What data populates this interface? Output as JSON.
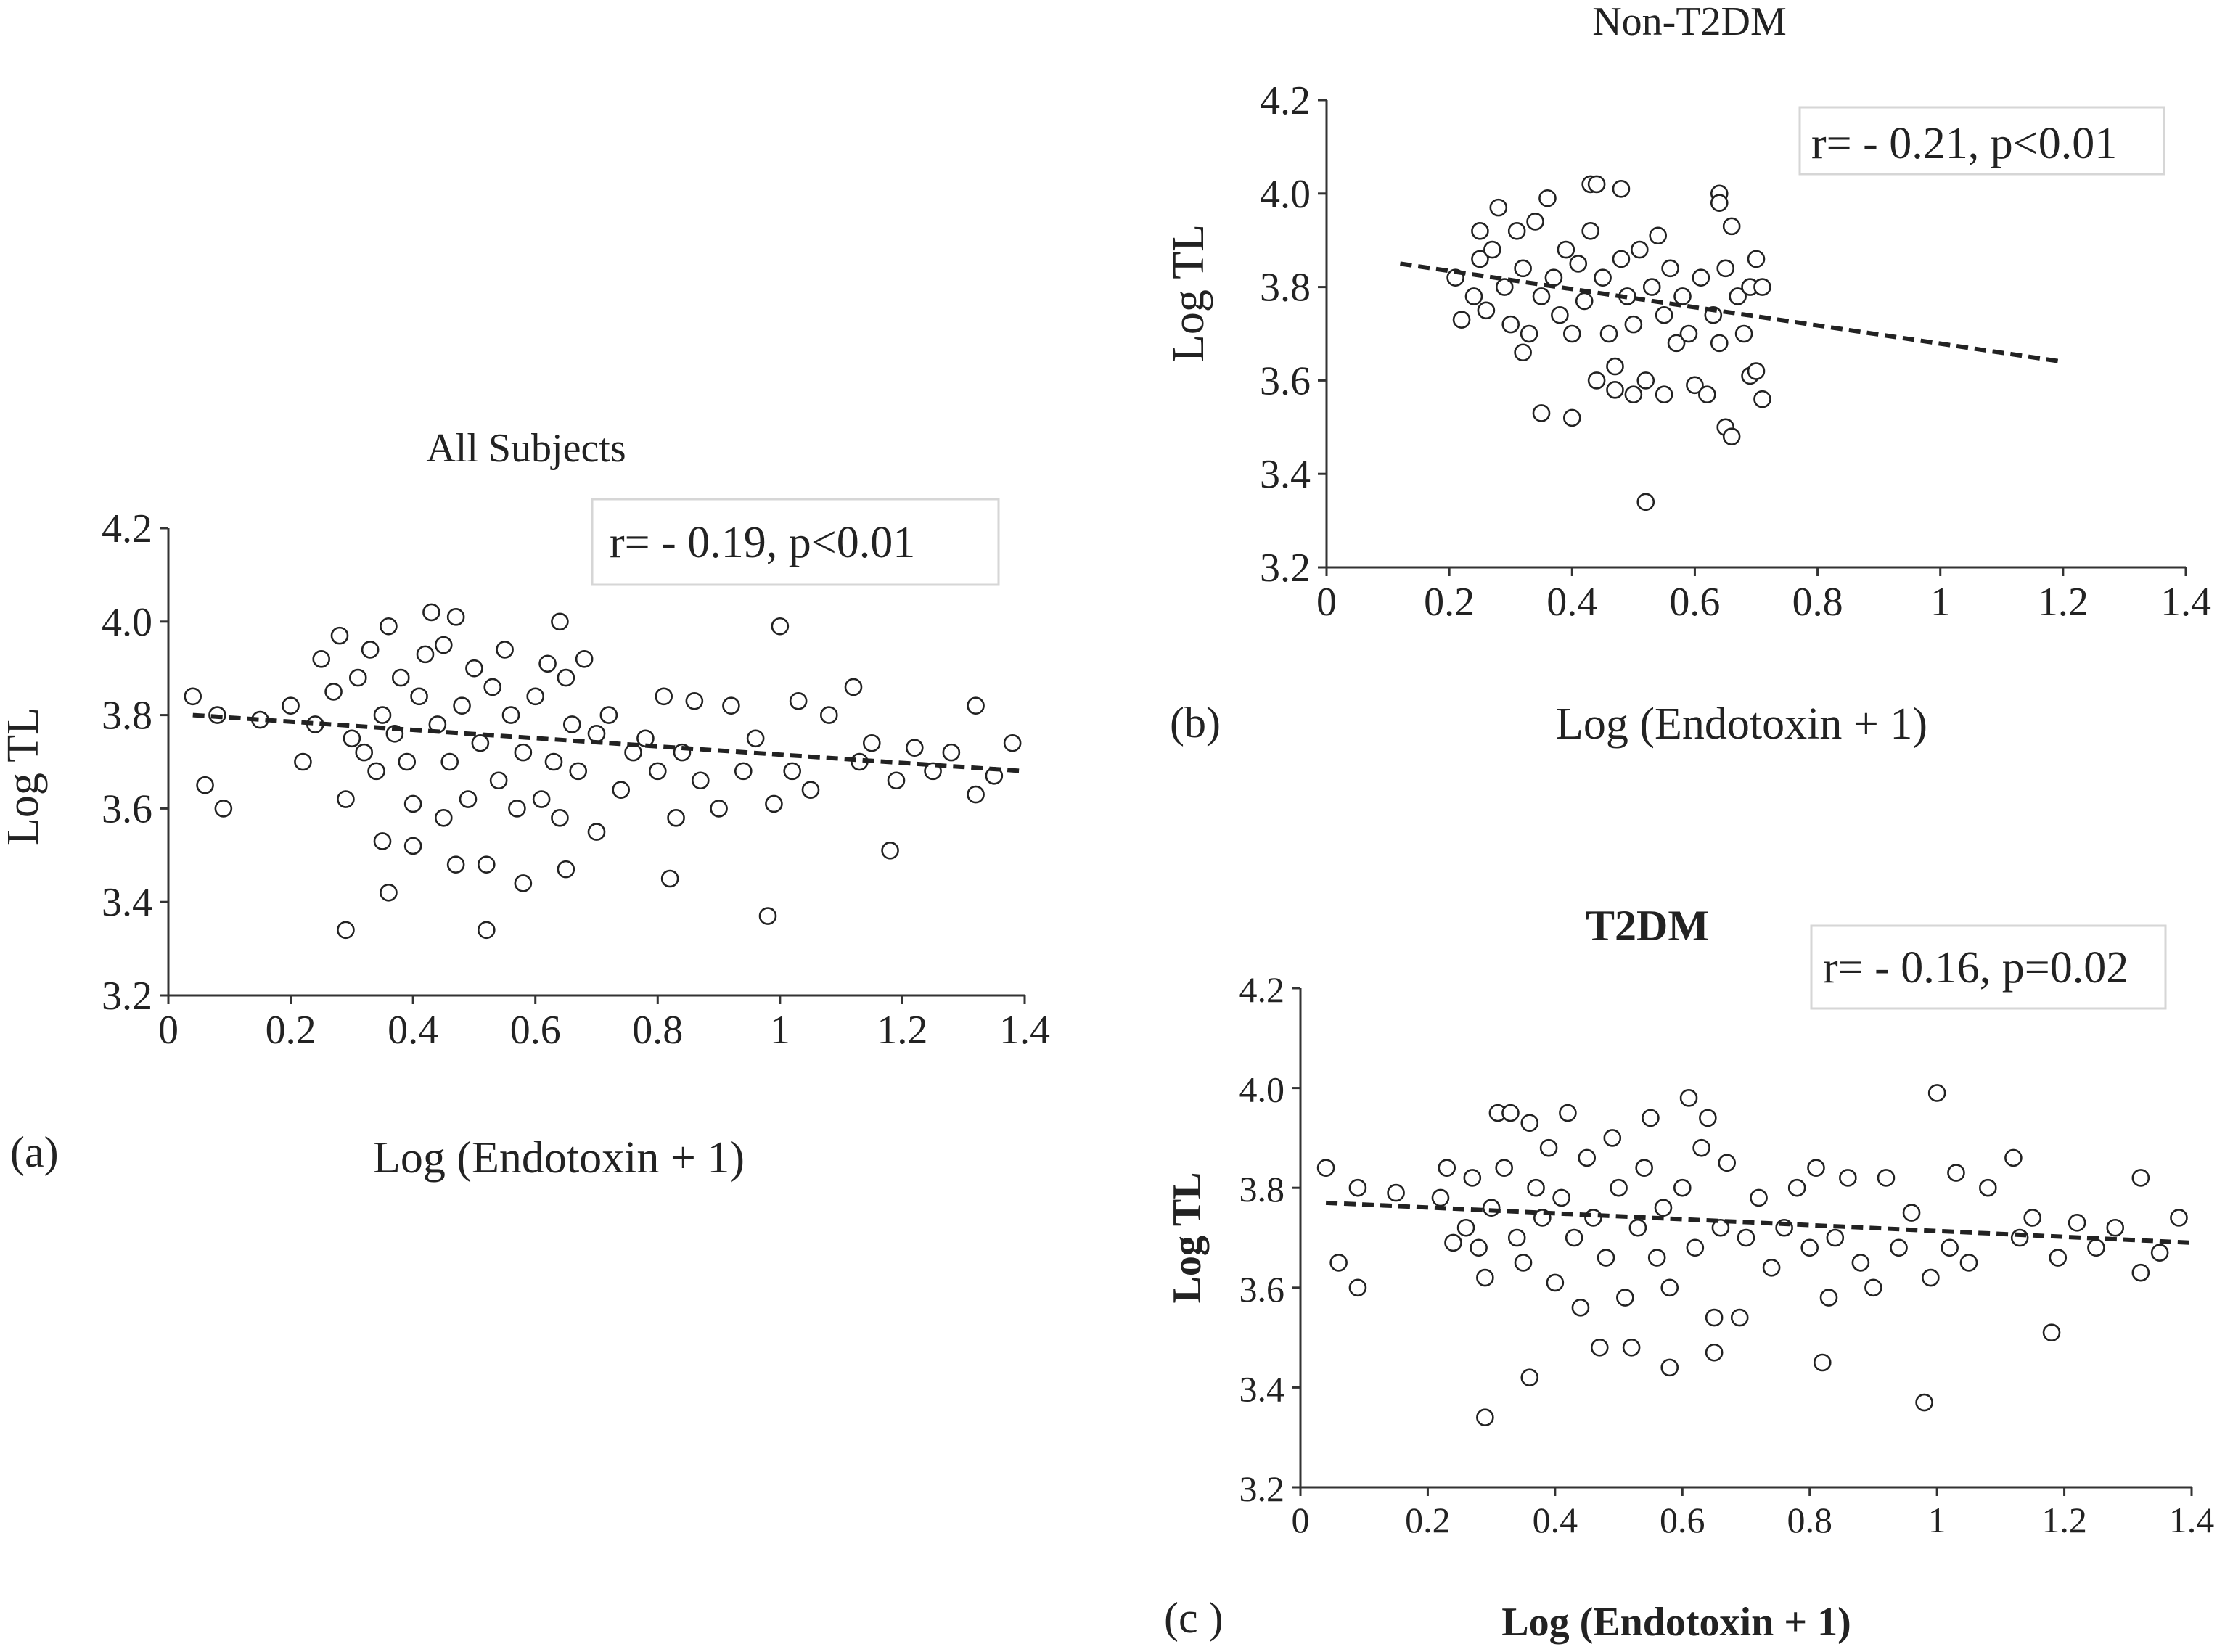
{
  "chart_data": [
    {
      "type": "scatter",
      "panel": "(a)",
      "title": "All Subjects",
      "xlabel": "Log (Endotoxin + 1)",
      "ylabel": "Log TL",
      "annotation": "r= - 0.19, p<0.01",
      "xlim": [
        0,
        1.4
      ],
      "ylim": [
        3.2,
        4.2
      ],
      "xticks": [
        "0",
        "0.2",
        "0.4",
        "0.6",
        "0.8",
        "1",
        "1.2",
        "1.4"
      ],
      "yticks": [
        "3.2",
        "3.4",
        "3.6",
        "3.8",
        "4.0",
        "4.2"
      ],
      "trendline": {
        "x": [
          0.04,
          1.4
        ],
        "y": [
          3.8,
          3.68
        ],
        "style": "dashed"
      },
      "sample_points": [
        [
          0.04,
          3.84
        ],
        [
          0.06,
          3.65
        ],
        [
          0.08,
          3.8
        ],
        [
          0.09,
          3.6
        ],
        [
          0.15,
          3.79
        ],
        [
          0.2,
          3.82
        ],
        [
          0.22,
          3.7
        ],
        [
          0.24,
          3.78
        ],
        [
          0.25,
          3.92
        ],
        [
          0.27,
          3.85
        ],
        [
          0.28,
          3.97
        ],
        [
          0.29,
          3.34
        ],
        [
          0.29,
          3.62
        ],
        [
          0.3,
          3.75
        ],
        [
          0.31,
          3.88
        ],
        [
          0.32,
          3.72
        ],
        [
          0.33,
          3.94
        ],
        [
          0.34,
          3.68
        ],
        [
          0.35,
          3.53
        ],
        [
          0.35,
          3.8
        ],
        [
          0.36,
          3.42
        ],
        [
          0.36,
          3.99
        ],
        [
          0.37,
          3.76
        ],
        [
          0.38,
          3.88
        ],
        [
          0.39,
          3.7
        ],
        [
          0.4,
          3.52
        ],
        [
          0.4,
          3.61
        ],
        [
          0.41,
          3.84
        ],
        [
          0.42,
          3.93
        ],
        [
          0.43,
          4.02
        ],
        [
          0.44,
          3.78
        ],
        [
          0.45,
          3.58
        ],
        [
          0.45,
          3.95
        ],
        [
          0.46,
          3.7
        ],
        [
          0.47,
          3.48
        ],
        [
          0.47,
          4.01
        ],
        [
          0.48,
          3.82
        ],
        [
          0.49,
          3.62
        ],
        [
          0.5,
          3.9
        ],
        [
          0.51,
          3.74
        ],
        [
          0.52,
          3.34
        ],
        [
          0.52,
          3.48
        ],
        [
          0.53,
          3.86
        ],
        [
          0.54,
          3.66
        ],
        [
          0.55,
          3.94
        ],
        [
          0.56,
          3.8
        ],
        [
          0.57,
          3.6
        ],
        [
          0.58,
          3.44
        ],
        [
          0.58,
          3.72
        ],
        [
          0.6,
          3.84
        ],
        [
          0.61,
          3.62
        ],
        [
          0.62,
          3.91
        ],
        [
          0.63,
          3.7
        ],
        [
          0.64,
          4.0
        ],
        [
          0.64,
          3.58
        ],
        [
          0.65,
          3.47
        ],
        [
          0.65,
          3.88
        ],
        [
          0.66,
          3.78
        ],
        [
          0.67,
          3.68
        ],
        [
          0.68,
          3.92
        ],
        [
          0.7,
          3.55
        ],
        [
          0.7,
          3.76
        ],
        [
          0.72,
          3.8
        ],
        [
          0.74,
          3.64
        ],
        [
          0.76,
          3.72
        ],
        [
          0.78,
          3.75
        ],
        [
          0.8,
          3.68
        ],
        [
          0.81,
          3.84
        ],
        [
          0.82,
          3.45
        ],
        [
          0.83,
          3.58
        ],
        [
          0.84,
          3.72
        ],
        [
          0.86,
          3.83
        ],
        [
          0.87,
          3.66
        ],
        [
          0.9,
          3.6
        ],
        [
          0.92,
          3.82
        ],
        [
          0.94,
          3.68
        ],
        [
          0.96,
          3.75
        ],
        [
          0.98,
          3.37
        ],
        [
          0.99,
          3.61
        ],
        [
          1.0,
          3.99
        ],
        [
          1.02,
          3.68
        ],
        [
          1.03,
          3.83
        ],
        [
          1.05,
          3.64
        ],
        [
          1.08,
          3.8
        ],
        [
          1.12,
          3.86
        ],
        [
          1.13,
          3.7
        ],
        [
          1.15,
          3.74
        ],
        [
          1.18,
          3.51
        ],
        [
          1.19,
          3.66
        ],
        [
          1.22,
          3.73
        ],
        [
          1.25,
          3.68
        ],
        [
          1.28,
          3.72
        ],
        [
          1.32,
          3.82
        ],
        [
          1.32,
          3.63
        ],
        [
          1.35,
          3.67
        ],
        [
          1.38,
          3.74
        ]
      ]
    },
    {
      "type": "scatter",
      "panel": "(b)",
      "title": "Non-T2DM",
      "xlabel": "Log (Endotoxin + 1)",
      "ylabel": "Log TL",
      "annotation": "r= - 0.21, p<0.01",
      "xlim": [
        0,
        1.4
      ],
      "ylim": [
        3.2,
        4.2
      ],
      "xticks": [
        "0",
        "0.2",
        "0.4",
        "0.6",
        "0.8",
        "1",
        "1.2",
        "1.4"
      ],
      "yticks": [
        "3.2",
        "3.4",
        "3.6",
        "3.8",
        "4.0",
        "4.2"
      ],
      "trendline": {
        "x": [
          0.12,
          1.2
        ],
        "y": [
          3.85,
          3.64
        ],
        "style": "dashed"
      },
      "sample_points": [
        [
          0.21,
          3.82
        ],
        [
          0.22,
          3.73
        ],
        [
          0.24,
          3.78
        ],
        [
          0.25,
          3.92
        ],
        [
          0.25,
          3.86
        ],
        [
          0.26,
          3.75
        ],
        [
          0.27,
          3.88
        ],
        [
          0.28,
          3.97
        ],
        [
          0.29,
          3.8
        ],
        [
          0.3,
          3.72
        ],
        [
          0.31,
          3.92
        ],
        [
          0.32,
          3.66
        ],
        [
          0.32,
          3.84
        ],
        [
          0.33,
          3.7
        ],
        [
          0.34,
          3.94
        ],
        [
          0.35,
          3.53
        ],
        [
          0.35,
          3.78
        ],
        [
          0.36,
          3.99
        ],
        [
          0.37,
          3.82
        ],
        [
          0.38,
          3.74
        ],
        [
          0.39,
          3.88
        ],
        [
          0.4,
          3.52
        ],
        [
          0.4,
          3.7
        ],
        [
          0.41,
          3.85
        ],
        [
          0.42,
          3.77
        ],
        [
          0.43,
          4.02
        ],
        [
          0.43,
          3.92
        ],
        [
          0.44,
          3.6
        ],
        [
          0.44,
          4.02
        ],
        [
          0.45,
          3.82
        ],
        [
          0.46,
          3.7
        ],
        [
          0.47,
          3.63
        ],
        [
          0.47,
          3.58
        ],
        [
          0.48,
          4.01
        ],
        [
          0.48,
          3.86
        ],
        [
          0.49,
          3.78
        ],
        [
          0.5,
          3.57
        ],
        [
          0.5,
          3.72
        ],
        [
          0.51,
          3.88
        ],
        [
          0.52,
          3.34
        ],
        [
          0.52,
          3.6
        ],
        [
          0.53,
          3.8
        ],
        [
          0.54,
          3.91
        ],
        [
          0.55,
          3.74
        ],
        [
          0.55,
          3.57
        ],
        [
          0.56,
          3.84
        ],
        [
          0.57,
          3.68
        ],
        [
          0.58,
          3.78
        ],
        [
          0.59,
          3.7
        ],
        [
          0.6,
          3.59
        ],
        [
          0.61,
          3.82
        ],
        [
          0.62,
          3.57
        ],
        [
          0.63,
          3.74
        ],
        [
          0.64,
          4.0
        ],
        [
          0.64,
          3.98
        ],
        [
          0.64,
          3.68
        ],
        [
          0.65,
          3.5
        ],
        [
          0.65,
          3.84
        ],
        [
          0.66,
          3.48
        ],
        [
          0.66,
          3.93
        ],
        [
          0.67,
          3.78
        ],
        [
          0.68,
          3.7
        ],
        [
          0.69,
          3.61
        ],
        [
          0.69,
          3.8
        ],
        [
          0.7,
          3.86
        ],
        [
          0.7,
          3.62
        ],
        [
          0.71,
          3.56
        ],
        [
          0.71,
          3.8
        ]
      ]
    },
    {
      "type": "scatter",
      "panel": "(c )",
      "title": "T2DM",
      "xlabel": "Log (Endotoxin + 1)",
      "ylabel": "Log TL",
      "annotation": "r= - 0.16, p=0.02",
      "xlim": [
        0,
        1.4
      ],
      "ylim": [
        3.2,
        4.2
      ],
      "xticks": [
        "0",
        "0.2",
        "0.4",
        "0.6",
        "0.8",
        "1",
        "1.2",
        "1.4"
      ],
      "yticks": [
        "3.2",
        "3.4",
        "3.6",
        "3.8",
        "4.0",
        "4.2"
      ],
      "trendline": {
        "x": [
          0.04,
          1.4
        ],
        "y": [
          3.77,
          3.69
        ],
        "style": "dashed"
      },
      "sample_points": [
        [
          0.04,
          3.84
        ],
        [
          0.06,
          3.65
        ],
        [
          0.09,
          3.6
        ],
        [
          0.09,
          3.8
        ],
        [
          0.15,
          3.79
        ],
        [
          0.22,
          3.78
        ],
        [
          0.23,
          3.84
        ],
        [
          0.24,
          3.69
        ],
        [
          0.26,
          3.72
        ],
        [
          0.27,
          3.82
        ],
        [
          0.28,
          3.68
        ],
        [
          0.29,
          3.34
        ],
        [
          0.29,
          3.62
        ],
        [
          0.3,
          3.76
        ],
        [
          0.31,
          3.95
        ],
        [
          0.32,
          3.84
        ],
        [
          0.33,
          3.95
        ],
        [
          0.34,
          3.7
        ],
        [
          0.35,
          3.65
        ],
        [
          0.36,
          3.42
        ],
        [
          0.36,
          3.93
        ],
        [
          0.37,
          3.8
        ],
        [
          0.38,
          3.74
        ],
        [
          0.39,
          3.88
        ],
        [
          0.4,
          3.61
        ],
        [
          0.41,
          3.78
        ],
        [
          0.42,
          3.95
        ],
        [
          0.43,
          3.7
        ],
        [
          0.44,
          3.56
        ],
        [
          0.45,
          3.86
        ],
        [
          0.46,
          3.74
        ],
        [
          0.47,
          3.48
        ],
        [
          0.48,
          3.66
        ],
        [
          0.49,
          3.9
        ],
        [
          0.5,
          3.8
        ],
        [
          0.51,
          3.58
        ],
        [
          0.52,
          3.48
        ],
        [
          0.53,
          3.72
        ],
        [
          0.54,
          3.84
        ],
        [
          0.55,
          3.94
        ],
        [
          0.56,
          3.66
        ],
        [
          0.57,
          3.76
        ],
        [
          0.58,
          3.44
        ],
        [
          0.58,
          3.6
        ],
        [
          0.6,
          3.8
        ],
        [
          0.61,
          3.98
        ],
        [
          0.62,
          3.68
        ],
        [
          0.63,
          3.88
        ],
        [
          0.64,
          3.94
        ],
        [
          0.65,
          3.47
        ],
        [
          0.65,
          3.54
        ],
        [
          0.66,
          3.72
        ],
        [
          0.67,
          3.85
        ],
        [
          0.69,
          3.54
        ],
        [
          0.7,
          3.7
        ],
        [
          0.72,
          3.78
        ],
        [
          0.74,
          3.64
        ],
        [
          0.76,
          3.72
        ],
        [
          0.78,
          3.8
        ],
        [
          0.8,
          3.68
        ],
        [
          0.81,
          3.84
        ],
        [
          0.82,
          3.45
        ],
        [
          0.83,
          3.58
        ],
        [
          0.84,
          3.7
        ],
        [
          0.86,
          3.82
        ],
        [
          0.88,
          3.65
        ],
        [
          0.9,
          3.6
        ],
        [
          0.92,
          3.82
        ],
        [
          0.94,
          3.68
        ],
        [
          0.96,
          3.75
        ],
        [
          0.98,
          3.37
        ],
        [
          0.99,
          3.62
        ],
        [
          1.0,
          3.99
        ],
        [
          1.02,
          3.68
        ],
        [
          1.03,
          3.83
        ],
        [
          1.05,
          3.65
        ],
        [
          1.08,
          3.8
        ],
        [
          1.12,
          3.86
        ],
        [
          1.13,
          3.7
        ],
        [
          1.15,
          3.74
        ],
        [
          1.18,
          3.51
        ],
        [
          1.19,
          3.66
        ],
        [
          1.22,
          3.73
        ],
        [
          1.25,
          3.68
        ],
        [
          1.28,
          3.72
        ],
        [
          1.32,
          3.82
        ],
        [
          1.32,
          3.63
        ],
        [
          1.35,
          3.67
        ],
        [
          1.38,
          3.74
        ]
      ]
    }
  ]
}
